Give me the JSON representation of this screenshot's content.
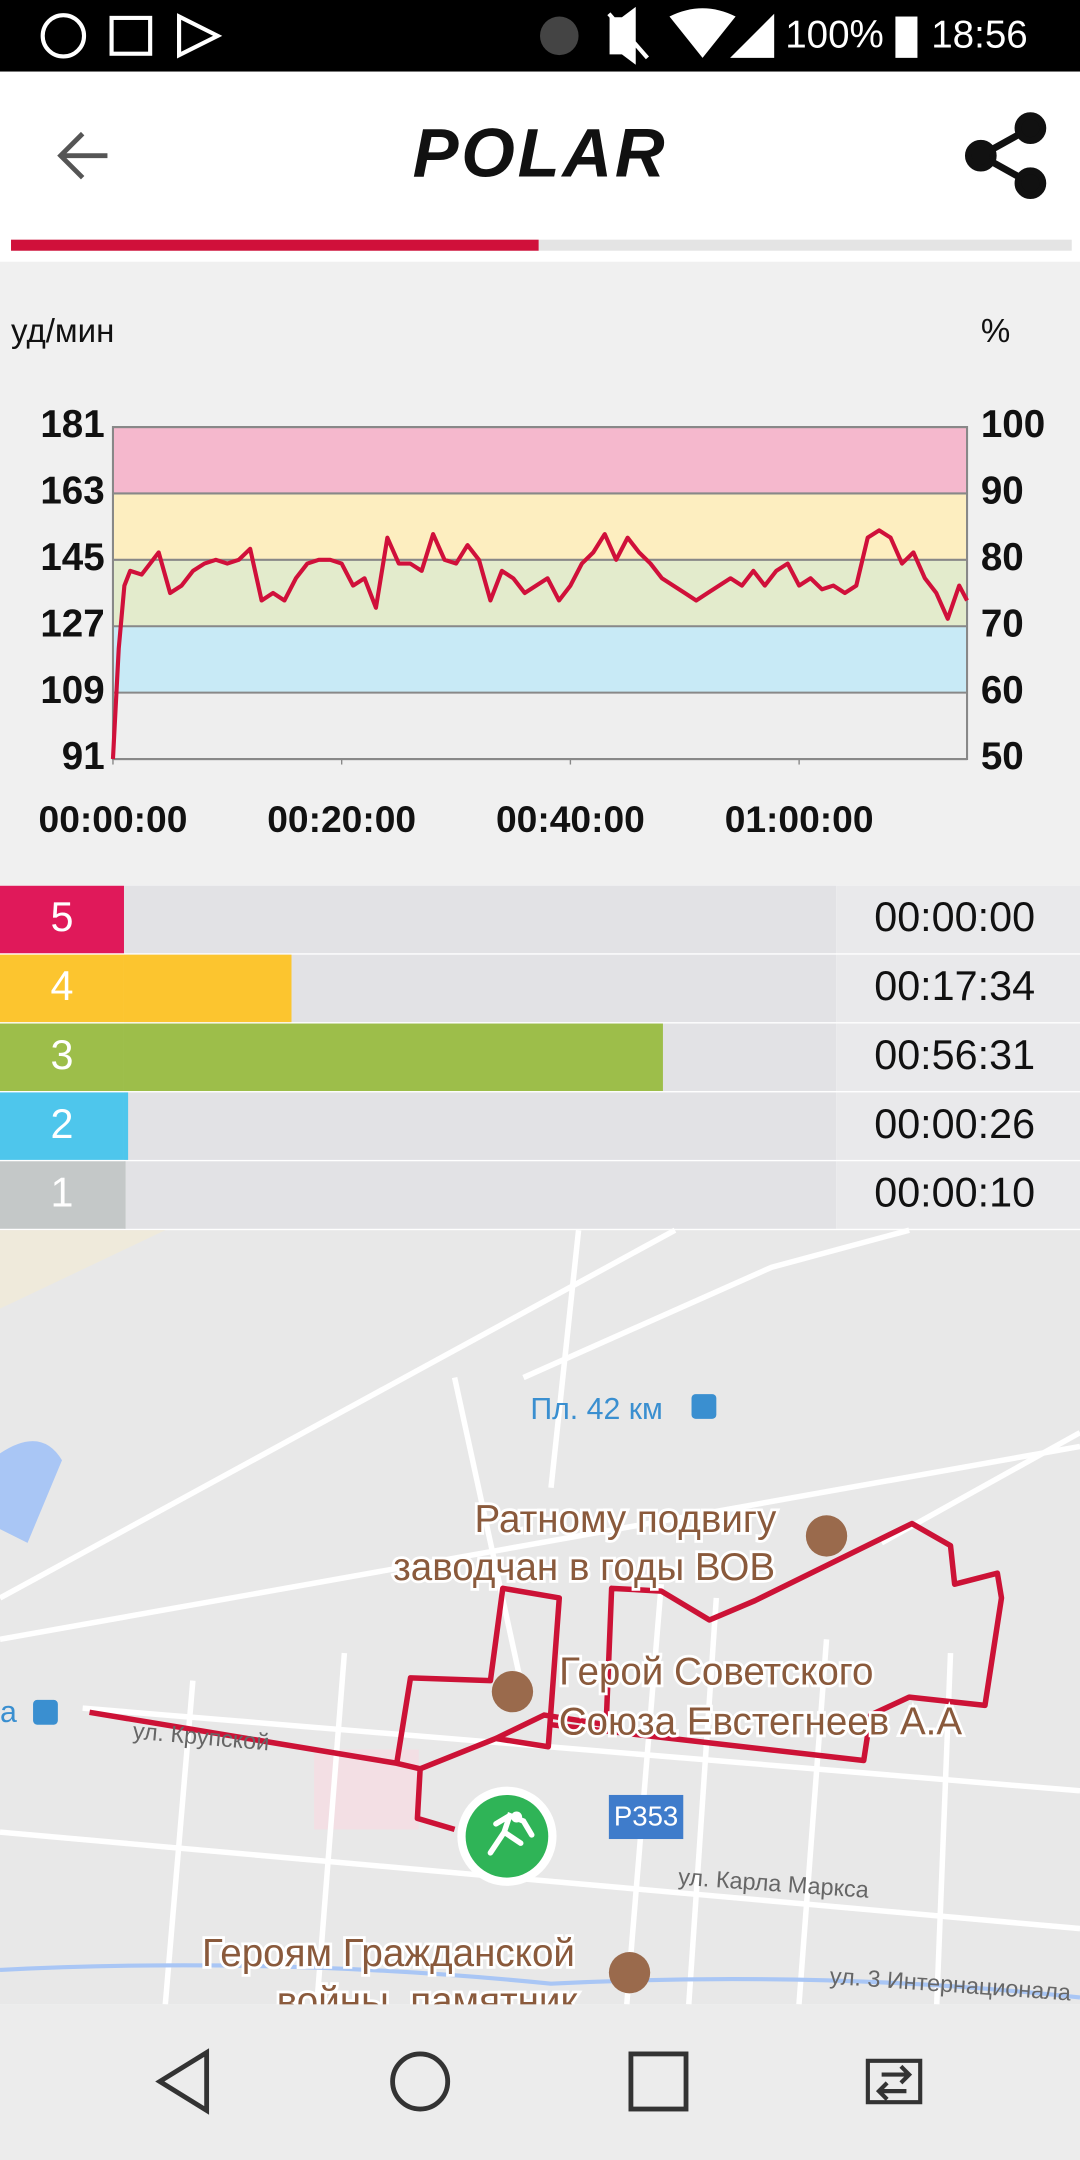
{
  "status_bar": {
    "battery": "100%",
    "time": "18:56"
  },
  "header": {
    "logo": "POLAR"
  },
  "chart_data": {
    "type": "line",
    "y_label": "уд/мин",
    "y2_label": "%",
    "xlim": [
      0,
      4481
    ],
    "xticks": [
      {
        "value": 0,
        "label": "00:00:00"
      },
      {
        "value": 1200,
        "label": "00:20:00"
      },
      {
        "value": 2400,
        "label": "00:40:00"
      },
      {
        "value": 3600,
        "label": "01:00:00"
      }
    ],
    "ylim": [
      91,
      181
    ],
    "yticks": [
      91,
      109,
      127,
      145,
      163,
      181
    ],
    "y2lim": [
      50,
      100
    ],
    "y2ticks": [
      50,
      60,
      70,
      80,
      90,
      100
    ],
    "grid": true,
    "bands": [
      {
        "from": 91,
        "to": 109,
        "color": "#eeeeee"
      },
      {
        "from": 109,
        "to": 127,
        "color": "#c8eaf6"
      },
      {
        "from": 127,
        "to": 145,
        "color": "#e3ebcc"
      },
      {
        "from": 145,
        "to": 163,
        "color": "#fdeec0"
      },
      {
        "from": 163,
        "to": 181,
        "color": "#f5b8cd"
      }
    ],
    "color": "#d0103a",
    "x": [
      0,
      30,
      60,
      90,
      150,
      240,
      300,
      360,
      420,
      480,
      540,
      600,
      660,
      720,
      780,
      840,
      900,
      960,
      1020,
      1080,
      1140,
      1200,
      1260,
      1320,
      1380,
      1440,
      1500,
      1560,
      1620,
      1680,
      1740,
      1800,
      1860,
      1920,
      1980,
      2040,
      2100,
      2160,
      2220,
      2280,
      2340,
      2400,
      2460,
      2520,
      2580,
      2640,
      2700,
      2760,
      2820,
      2880,
      2940,
      3000,
      3060,
      3120,
      3180,
      3240,
      3300,
      3360,
      3420,
      3480,
      3540,
      3600,
      3660,
      3720,
      3780,
      3840,
      3900,
      3960,
      4020,
      4080,
      4140,
      4200,
      4260,
      4320,
      4380,
      4440,
      4481
    ],
    "values": [
      91,
      121,
      138,
      142,
      141,
      147,
      136,
      138,
      142,
      144,
      145,
      144,
      145,
      148,
      134,
      136,
      134,
      140,
      144,
      145,
      145,
      144,
      138,
      140,
      132,
      151,
      144,
      144,
      142,
      152,
      145,
      144,
      149,
      145,
      134,
      142,
      140,
      136,
      138,
      140,
      134,
      138,
      144,
      147,
      152,
      145,
      151,
      147,
      144,
      140,
      138,
      136,
      134,
      136,
      138,
      140,
      138,
      142,
      138,
      142,
      144,
      138,
      140,
      137,
      138,
      136,
      138,
      151,
      153,
      151,
      144,
      147,
      140,
      136,
      129,
      138,
      134
    ]
  },
  "zones": {
    "xlim": [
      0,
      4481
    ],
    "rows": [
      {
        "zone": "5",
        "color": "#e0195a",
        "seconds": 0,
        "time": "00:00:00"
      },
      {
        "zone": "4",
        "color": "#fcc52f",
        "seconds": 1054,
        "time": "00:17:34"
      },
      {
        "zone": "3",
        "color": "#9dbe4a",
        "seconds": 3391,
        "time": "00:56:31"
      },
      {
        "zone": "2",
        "color": "#4ec6ec",
        "seconds": 26,
        "time": "00:00:26"
      },
      {
        "zone": "1",
        "color": "#c4c8c8",
        "seconds": 10,
        "time": "00:00:10"
      }
    ]
  },
  "map": {
    "station": "Пл. 42 км",
    "monument_1": [
      "Ратному подвигу",
      "заводчан в годы ВОВ"
    ],
    "monument_2": [
      "Герой Советского",
      "Союза Евстегнеев А.А"
    ],
    "monument_3": [
      "Героям Гражданской",
      "войны, памятник"
    ],
    "street_1": "ул. Крупской",
    "street_2": "ул. Карла Маркса",
    "street_3": "ул. 3 Интернационала",
    "road": "Р353",
    "edge_label": "а"
  }
}
